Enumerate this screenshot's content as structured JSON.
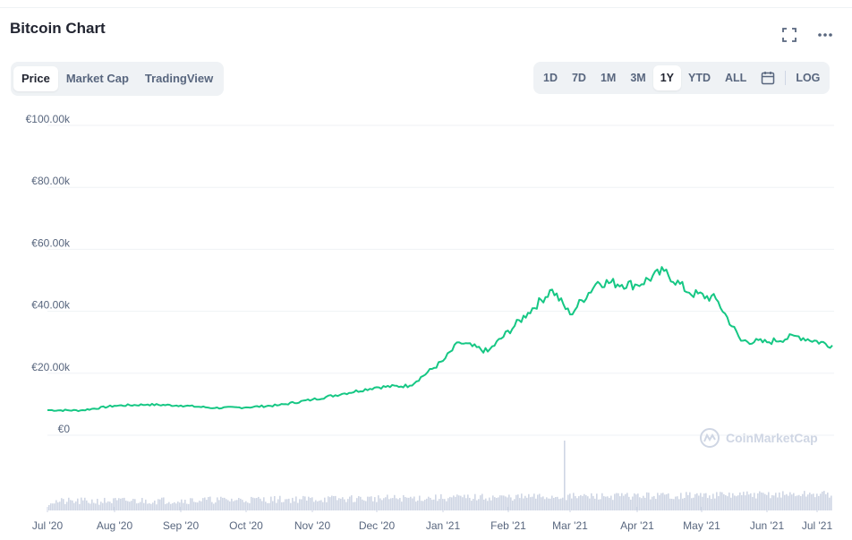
{
  "header": {
    "title": "Bitcoin Chart"
  },
  "icons": {
    "fullscreen": "fullscreen-icon",
    "more": "more-icon",
    "calendar": "calendar-icon"
  },
  "tabs_left": [
    {
      "label": "Price",
      "active": true
    },
    {
      "label": "Market Cap",
      "active": false
    },
    {
      "label": "TradingView",
      "active": false
    }
  ],
  "ranges": [
    {
      "label": "1D",
      "active": false
    },
    {
      "label": "7D",
      "active": false
    },
    {
      "label": "1M",
      "active": false
    },
    {
      "label": "3M",
      "active": false
    },
    {
      "label": "1Y",
      "active": true
    },
    {
      "label": "YTD",
      "active": false
    },
    {
      "label": "ALL",
      "active": false
    }
  ],
  "log_label": "LOG",
  "watermark": "CoinMarketCap",
  "colors": {
    "line": "#16c784",
    "volume": "#cfd6e4",
    "grid": "#eff2f5",
    "axis_text": "#58667e"
  },
  "chart_data": {
    "type": "line",
    "title": "",
    "xlabel": "",
    "ylabel": "",
    "ylim": [
      0,
      100000
    ],
    "y_ticks": [
      "€0",
      "€20.00k",
      "€40.00k",
      "€60.00k",
      "€80.00k",
      "€100.00k"
    ],
    "y_tick_values": [
      0,
      20000,
      40000,
      60000,
      80000,
      100000
    ],
    "x_ticks": [
      "Jul '20",
      "Aug '20",
      "Sep '20",
      "Oct '20",
      "Nov '20",
      "Dec '20",
      "Jan '21",
      "Feb '21",
      "Mar '21",
      "Apr '21",
      "May '21",
      "Jun '21",
      "Jul '21"
    ],
    "x_range": [
      "Jul '20",
      "Jul '21"
    ],
    "grid": true,
    "series": [
      {
        "values_by_month": [
          {
            "x": "Jul '20",
            "y": 8100
          },
          {
            "x": "Jul '20 mid",
            "y": 8000
          },
          {
            "x": "Aug '20",
            "y": 9500
          },
          {
            "x": "Aug '20 mid",
            "y": 9900
          },
          {
            "x": "Sep '20",
            "y": 9600
          },
          {
            "x": "Sep '20 mid",
            "y": 8800
          },
          {
            "x": "Oct '20",
            "y": 9000
          },
          {
            "x": "Oct '20 mid",
            "y": 9700
          },
          {
            "x": "Nov '20",
            "y": 11500
          },
          {
            "x": "Nov '20 mid",
            "y": 13500
          },
          {
            "x": "Dec '20",
            "y": 15500
          },
          {
            "x": "Dec '20 mid",
            "y": 16000
          },
          {
            "x": "Jan '21",
            "y": 24000
          },
          {
            "x": "Jan '21 mid",
            "y": 30000
          },
          {
            "x": "Feb '21",
            "y": 27000
          },
          {
            "x": "Feb '21 mid",
            "y": 39500
          },
          {
            "x": "Feb '21 peak",
            "y": 47000
          },
          {
            "x": "Mar '21",
            "y": 39000
          },
          {
            "x": "Mar '21 mid",
            "y": 49500
          },
          {
            "x": "Apr '21",
            "y": 48500
          },
          {
            "x": "Apr '21 peak",
            "y": 53000
          },
          {
            "x": "May '21",
            "y": 46000
          },
          {
            "x": "May '21 mid",
            "y": 44000
          },
          {
            "x": "May '21 drop",
            "y": 30500
          },
          {
            "x": "Jun '21",
            "y": 30000
          },
          {
            "x": "Jun '21 mid",
            "y": 32000
          },
          {
            "x": "Jul '21",
            "y": 29000
          }
        ]
      }
    ],
    "volume": {
      "unit": "relative",
      "spike_at": "Feb '21 late",
      "spike_value": 1.0,
      "typical": 0.15
    }
  }
}
